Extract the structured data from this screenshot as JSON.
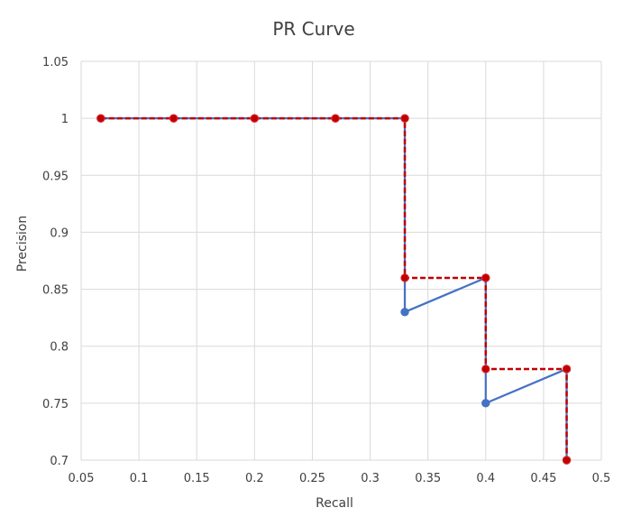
{
  "chart_data": {
    "type": "line",
    "title": "PR Curve",
    "xlabel": "Recall",
    "ylabel": "Precision",
    "xlim": [
      0.05,
      0.5
    ],
    "ylim": [
      0.7,
      1.05
    ],
    "x_ticks": [
      "0.05",
      "0.1",
      "0.15",
      "0.2",
      "0.25",
      "0.3",
      "0.35",
      "0.4",
      "0.45",
      "0.5"
    ],
    "y_ticks": [
      "0.7",
      "0.75",
      "0.8",
      "0.85",
      "0.9",
      "0.95",
      "1",
      "1.05"
    ],
    "grid": "on",
    "legend": "none",
    "series": [
      {
        "color": "#4472c4",
        "line_style": "solid",
        "marker_color": "#4472c4",
        "points": [
          {
            "x": 0.067,
            "y": 1.0
          },
          {
            "x": 0.13,
            "y": 1.0
          },
          {
            "x": 0.2,
            "y": 1.0
          },
          {
            "x": 0.27,
            "y": 1.0
          },
          {
            "x": 0.33,
            "y": 1.0
          },
          {
            "x": 0.33,
            "y": 0.83
          },
          {
            "x": 0.4,
            "y": 0.86
          },
          {
            "x": 0.4,
            "y": 0.75
          },
          {
            "x": 0.47,
            "y": 0.78
          },
          {
            "x": 0.47,
            "y": 0.7
          }
        ]
      },
      {
        "color": "#c00000",
        "line_style": "dashed",
        "marker_color": "#c00000",
        "points": [
          {
            "x": 0.067,
            "y": 1.0
          },
          {
            "x": 0.13,
            "y": 1.0
          },
          {
            "x": 0.2,
            "y": 1.0
          },
          {
            "x": 0.27,
            "y": 1.0
          },
          {
            "x": 0.33,
            "y": 1.0
          },
          {
            "x": 0.33,
            "y": 0.86
          },
          {
            "x": 0.4,
            "y": 0.86
          },
          {
            "x": 0.4,
            "y": 0.78
          },
          {
            "x": 0.47,
            "y": 0.78
          },
          {
            "x": 0.47,
            "y": 0.7
          }
        ]
      }
    ]
  }
}
